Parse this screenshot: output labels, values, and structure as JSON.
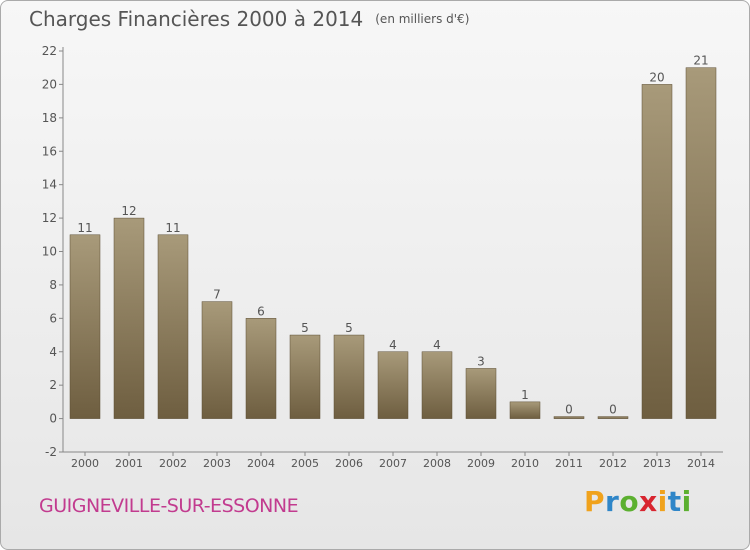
{
  "title": "Charges Financières 2000 à 2014",
  "unit": "(en milliers d'€)",
  "commune": "GUIGNEVILLE-SUR-ESSONNE",
  "brand": {
    "letters": [
      "P",
      "r",
      "o",
      "x",
      "i",
      "t",
      "i"
    ],
    "colors": [
      "#f0a21c",
      "#2f86c8",
      "#5cb030",
      "#d8252f",
      "#f0a21c",
      "#2f86c8",
      "#5cb030"
    ]
  },
  "colors": {
    "bar_light": "#a89a7a",
    "bar_dark": "#6e5e40",
    "text": "#555555",
    "commune": "#c23b8f"
  },
  "chart_data": {
    "type": "bar",
    "categories": [
      "2000",
      "2001",
      "2002",
      "2003",
      "2004",
      "2005",
      "2006",
      "2007",
      "2008",
      "2009",
      "2010",
      "2011",
      "2012",
      "2013",
      "2014"
    ],
    "values": [
      11,
      12,
      11,
      7,
      6,
      5,
      5,
      4,
      4,
      3,
      1,
      0,
      0,
      20,
      21
    ],
    "labels": [
      "11",
      "12",
      "11",
      "7",
      "6",
      "5",
      "5",
      "4",
      "4",
      "3",
      "1",
      "0",
      "0",
      "20",
      "21"
    ],
    "yticks": [
      -2,
      0,
      2,
      4,
      6,
      8,
      10,
      12,
      14,
      16,
      18,
      20,
      22
    ],
    "ylim": [
      -2,
      22
    ],
    "grid": false,
    "legend": "none"
  }
}
